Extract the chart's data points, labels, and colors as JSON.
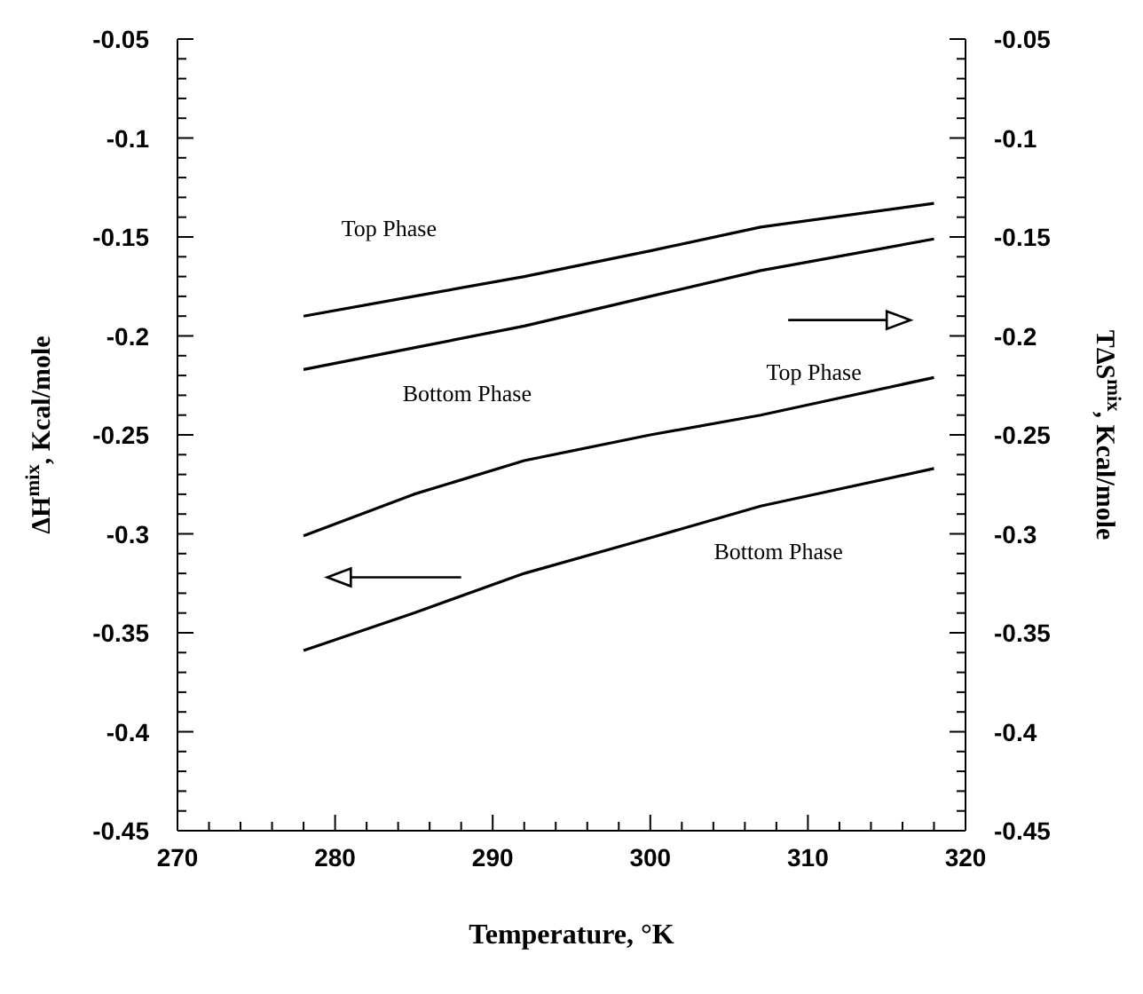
{
  "chart_data": {
    "type": "line",
    "xlabel": "Temperature, °K",
    "ylabel": "ΔH$^{mix}$, Kcal/mole",
    "y2label": "TΔS$^{mix}$, Kcal/mole",
    "x": [
      278,
      285,
      292,
      300,
      307,
      318
    ],
    "series": [
      {
        "name": "Top Phase",
        "color": "#000000",
        "axis": "y2",
        "values": [
          -0.19,
          -0.18,
          -0.17,
          -0.157,
          -0.145,
          -0.133
        ]
      },
      {
        "name": "Bottom Phase",
        "color": "#000000",
        "axis": "y2",
        "values": [
          -0.217,
          -0.206,
          -0.195,
          -0.18,
          -0.167,
          -0.151
        ]
      },
      {
        "name": "Top Phase",
        "color": "#000000",
        "values": [
          -0.301,
          -0.28,
          -0.263,
          -0.25,
          -0.24,
          -0.221
        ]
      },
      {
        "name": "Bottom Phase",
        "color": "#000000",
        "values": [
          -0.359,
          -0.34,
          -0.32,
          -0.302,
          -0.286,
          -0.267
        ]
      }
    ],
    "xlim": [
      270,
      320
    ],
    "xticks": [
      270,
      {
        "value": 272,
        "label": null
      },
      {
        "value": 274,
        "label": null
      },
      {
        "value": 276,
        "label": null
      },
      {
        "value": 278,
        "label": null
      },
      280,
      {
        "value": 282,
        "label": null
      },
      {
        "value": 284,
        "label": null
      },
      {
        "value": 286,
        "label": null
      },
      {
        "value": 288,
        "label": null
      },
      290,
      {
        "value": 292,
        "label": null
      },
      {
        "value": 294,
        "label": null
      },
      {
        "value": 296,
        "label": null
      },
      {
        "value": 298,
        "label": null
      },
      300,
      {
        "value": 302,
        "label": null
      },
      {
        "value": 304,
        "label": null
      },
      {
        "value": 306,
        "label": null
      },
      {
        "value": 308,
        "label": null
      },
      310,
      {
        "value": 312,
        "label": null
      },
      {
        "value": 314,
        "label": null
      },
      {
        "value": 316,
        "label": null
      },
      {
        "value": 318,
        "label": null
      },
      320
    ],
    "ylim": [
      -0.45,
      -0.05
    ],
    "yticks": [
      -0.45,
      {
        "value": -0.44,
        "label": null
      },
      {
        "value": -0.43,
        "label": null
      },
      {
        "value": -0.42,
        "label": null
      },
      {
        "value": -0.41,
        "label": null
      },
      -0.4,
      {
        "value": -0.39,
        "label": null
      },
      {
        "value": -0.38,
        "label": null
      },
      {
        "value": -0.37,
        "label": null
      },
      {
        "value": -0.36,
        "label": null
      },
      -0.35,
      {
        "value": -0.34,
        "label": null
      },
      {
        "value": -0.33,
        "label": null
      },
      {
        "value": -0.32,
        "label": null
      },
      {
        "value": -0.31,
        "label": null
      },
      -0.3,
      {
        "value": -0.29,
        "label": null
      },
      {
        "value": -0.28,
        "label": null
      },
      {
        "value": -0.27,
        "label": null
      },
      {
        "value": -0.26,
        "label": null
      },
      -0.25,
      {
        "value": -0.24,
        "label": null
      },
      {
        "value": -0.23,
        "label": null
      },
      {
        "value": -0.22,
        "label": null
      },
      {
        "value": -0.21,
        "label": null
      },
      -0.2,
      {
        "value": -0.19,
        "label": null
      },
      {
        "value": -0.18,
        "label": null
      },
      {
        "value": -0.17,
        "label": null
      },
      {
        "value": -0.16,
        "label": null
      },
      -0.15,
      {
        "value": -0.14,
        "label": null
      },
      {
        "value": -0.13,
        "label": null
      },
      {
        "value": -0.12,
        "label": null
      },
      {
        "value": -0.11,
        "label": null
      },
      -0.1,
      {
        "value": -0.09,
        "label": null
      },
      {
        "value": -0.08,
        "label": null
      },
      {
        "value": -0.07,
        "label": null
      },
      {
        "value": -0.06,
        "label": null
      },
      -0.05
    ],
    "y2lim": [
      -0.45,
      -0.05
    ],
    "y2ticks": [
      -0.45,
      {
        "value": -0.44,
        "label": null
      },
      {
        "value": -0.43,
        "label": null
      },
      {
        "value": -0.42,
        "label": null
      },
      {
        "value": -0.41,
        "label": null
      },
      -0.4,
      {
        "value": -0.39,
        "label": null
      },
      {
        "value": -0.38,
        "label": null
      },
      {
        "value": -0.37,
        "label": null
      },
      {
        "value": -0.36,
        "label": null
      },
      -0.35,
      {
        "value": -0.34,
        "label": null
      },
      {
        "value": -0.33,
        "label": null
      },
      {
        "value": -0.32,
        "label": null
      },
      {
        "value": -0.31,
        "label": null
      },
      -0.3,
      {
        "value": -0.29,
        "label": null
      },
      {
        "value": -0.28,
        "label": null
      },
      {
        "value": -0.27,
        "label": null
      },
      {
        "value": -0.26,
        "label": null
      },
      -0.25,
      {
        "value": -0.24,
        "label": null
      },
      {
        "value": -0.23,
        "label": null
      },
      {
        "value": -0.22,
        "label": null
      },
      {
        "value": -0.21,
        "label": null
      },
      -0.2,
      {
        "value": -0.19,
        "label": null
      },
      {
        "value": -0.18,
        "label": null
      },
      {
        "value": -0.17,
        "label": null
      },
      {
        "value": -0.16,
        "label": null
      },
      -0.15,
      {
        "value": -0.14,
        "label": null
      },
      {
        "value": -0.13,
        "label": null
      },
      {
        "value": -0.12,
        "label": null
      },
      {
        "value": -0.11,
        "label": null
      },
      -0.1,
      {
        "value": -0.09,
        "label": null
      },
      {
        "value": -0.08,
        "label": null
      },
      {
        "value": -0.07,
        "label": null
      },
      {
        "value": -0.06,
        "label": null
      },
      -0.05
    ],
    "grid": false,
    "legend": false,
    "marker": "none",
    "line_style": "solid"
  }
}
